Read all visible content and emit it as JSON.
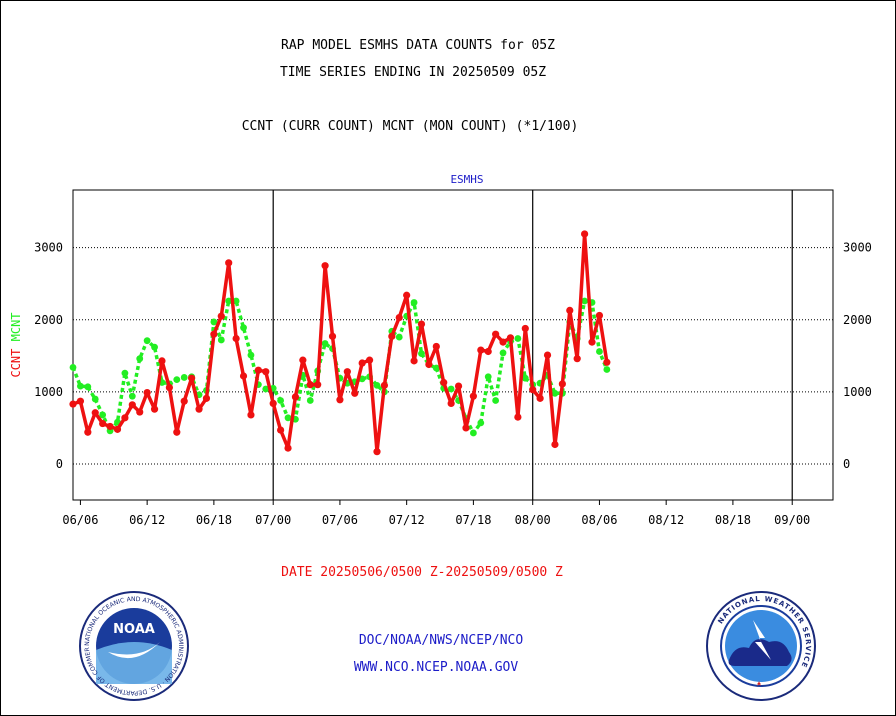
{
  "header": {
    "title1": "RAP MODEL ESMHS DATA COUNTS for 05Z",
    "title2": "TIME SERIES ENDING IN 20250509 05Z",
    "subtitle": "CCNT (CURR COUNT) MCNT (MON COUNT) (*1/100)"
  },
  "footer": {
    "date_range": "DATE 20250506/0500 Z-20250509/0500 Z",
    "org": "DOC/NOAA/NWS/NCEP/NCO",
    "url": "WWW.NCO.NCEP.NOAA.GOV"
  },
  "logos": {
    "left": {
      "name": "noaa-logo",
      "text": "NOAA",
      "ring_text": "NATIONAL OCEANIC AND ATMOSPHERIC ADMINISTRATION · U.S. DEPARTMENT OF COMMERCE"
    },
    "right": {
      "name": "nws-logo",
      "ring_text": "NATIONAL WEATHER SERVICE"
    }
  },
  "colors": {
    "ccnt": "#ee1111",
    "mcnt": "#22ee22",
    "label_blue": "#1c1cc8",
    "label_red": "#ee1111"
  },
  "chart_data": {
    "type": "line",
    "title": "ESMHS",
    "ylabel_left": [
      {
        "text": "CCNT",
        "color": "#ee1111"
      },
      {
        "text": "MCNT",
        "color": "#22ee22"
      }
    ],
    "ylim": [
      -500,
      3800
    ],
    "yticks": [
      0,
      1000,
      2000,
      3000
    ],
    "xlim": [
      0,
      102.5
    ],
    "xticks": [
      {
        "x": 1,
        "label": "06/06"
      },
      {
        "x": 10,
        "label": "06/12"
      },
      {
        "x": 19,
        "label": "06/18"
      },
      {
        "x": 27,
        "label": "07/00"
      },
      {
        "x": 36,
        "label": "07/06"
      },
      {
        "x": 45,
        "label": "07/12"
      },
      {
        "x": 54,
        "label": "07/18"
      },
      {
        "x": 62,
        "label": "08/00"
      },
      {
        "x": 71,
        "label": "08/06"
      },
      {
        "x": 80,
        "label": "08/12"
      },
      {
        "x": 89,
        "label": "08/18"
      },
      {
        "x": 97,
        "label": "09/00"
      }
    ],
    "day_boundaries": [
      27,
      62,
      97
    ],
    "grid": "horizontal dotted at y ticks",
    "series": [
      {
        "name": "CCNT",
        "color": "#ee1111",
        "values": [
          830,
          870,
          440,
          710,
          560,
          520,
          480,
          640,
          820,
          720,
          990,
          760,
          1430,
          1060,
          440,
          870,
          1190,
          760,
          910,
          1800,
          2050,
          2790,
          1740,
          1220,
          680,
          1300,
          1280,
          840,
          470,
          220,
          930,
          1440,
          1100,
          1100,
          2750,
          1770,
          890,
          1280,
          980,
          1400,
          1440,
          170,
          1090,
          1770,
          2030,
          2340,
          1430,
          1940,
          1380,
          1630,
          1130,
          840,
          1080,
          500,
          940,
          1580,
          1560,
          1800,
          1690,
          1750,
          650,
          1880,
          1030,
          910,
          1510,
          270,
          1110,
          2130,
          1460,
          3190,
          1690,
          2060,
          1410
        ]
      },
      {
        "name": "MCNT",
        "color": "#22ee22",
        "values": [
          1340,
          1080,
          1070,
          900,
          680,
          460,
          580,
          1260,
          940,
          1460,
          1710,
          1620,
          1130,
          1110,
          1170,
          1200,
          1210,
          960,
          1020,
          1970,
          1720,
          2260,
          2260,
          1890,
          1510,
          1100,
          1040,
          1050,
          880,
          640,
          620,
          1230,
          880,
          1290,
          1670,
          1600,
          1190,
          1120,
          1140,
          1180,
          1210,
          1090,
          1000,
          1840,
          1760,
          2050,
          2240,
          1530,
          1380,
          1330,
          1050,
          1040,
          880,
          630,
          430,
          570,
          1210,
          880,
          1540,
          1700,
          1740,
          1190,
          1100,
          1120,
          1230,
          980,
          980,
          1970,
          1740,
          2260,
          2240,
          1560,
          1310
        ]
      }
    ]
  }
}
